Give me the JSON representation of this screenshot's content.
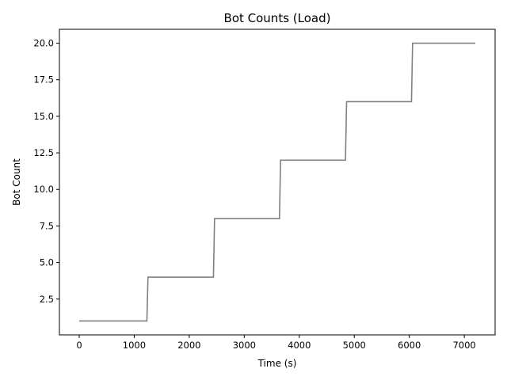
{
  "chart_data": {
    "type": "line",
    "title": "Bot Counts (Load)",
    "xlabel": "Time (s)",
    "ylabel": "Bot Count",
    "xlim": [
      -360,
      7560
    ],
    "ylim": [
      0.05,
      20.95
    ],
    "x_ticks": [
      0,
      1000,
      2000,
      3000,
      4000,
      5000,
      6000,
      7000
    ],
    "y_ticks": [
      2.5,
      5.0,
      7.5,
      10.0,
      12.5,
      15.0,
      17.5,
      20.0
    ],
    "x_tick_labels": [
      "0",
      "1000",
      "2000",
      "3000",
      "4000",
      "5000",
      "6000",
      "7000"
    ],
    "y_tick_labels": [
      "2.5",
      "5.0",
      "7.5",
      "10.0",
      "12.5",
      "15.0",
      "17.5",
      "20.0"
    ],
    "grid": false,
    "legend": "none",
    "series": [
      {
        "color": "#808080",
        "x": [
          0,
          1230,
          1250,
          2440,
          2460,
          3640,
          3660,
          4840,
          4860,
          6040,
          6060,
          7200
        ],
        "y": [
          1,
          1,
          4,
          4,
          8,
          8,
          12,
          12,
          16,
          16,
          20,
          20
        ]
      }
    ]
  }
}
